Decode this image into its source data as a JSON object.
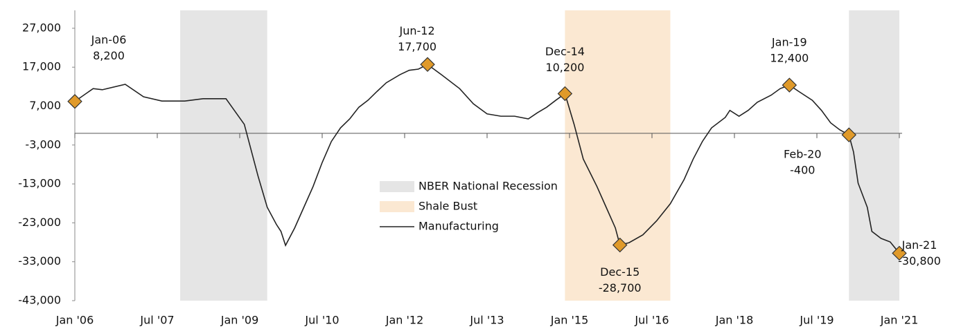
{
  "chart_data": {
    "type": "line",
    "x": [
      "2006-01",
      "2006-05",
      "2006-07",
      "2006-12",
      "2007-04",
      "2007-08",
      "2008-01",
      "2008-05",
      "2008-10",
      "2009-02",
      "2009-05",
      "2009-07",
      "2009-09",
      "2009-10",
      "2009-11",
      "2010-01",
      "2010-03",
      "2010-05",
      "2010-07",
      "2010-09",
      "2010-11",
      "2011-01",
      "2011-03",
      "2011-05",
      "2011-07",
      "2011-09",
      "2011-12",
      "2012-02",
      "2012-04",
      "2012-06",
      "2012-09",
      "2013-01",
      "2013-04",
      "2013-07",
      "2013-10",
      "2014-01",
      "2014-04",
      "2014-06",
      "2014-08",
      "2014-10",
      "2014-12",
      "2015-02",
      "2015-04",
      "2015-07",
      "2015-09",
      "2015-11",
      "2015-12",
      "2016-02",
      "2016-05",
      "2016-08",
      "2016-11",
      "2017-02",
      "2017-04",
      "2017-06",
      "2017-08",
      "2017-11",
      "2017-12",
      "2018-02",
      "2018-04",
      "2018-06",
      "2018-09",
      "2018-11",
      "2019-01",
      "2019-03",
      "2019-06",
      "2019-08",
      "2019-10",
      "2019-12",
      "2020-02",
      "2020-03",
      "2020-04",
      "2020-06",
      "2020-07",
      "2020-09",
      "2020-11",
      "2021-01"
    ],
    "series": [
      {
        "name": "Manufacturing",
        "color": "#222222",
        "values": [
          8200,
          11500,
          11200,
          12600,
          9400,
          8300,
          8300,
          8900,
          8900,
          2300,
          -11000,
          -19000,
          -23400,
          -25200,
          -28800,
          -24300,
          -19000,
          -13700,
          -7500,
          -2100,
          1400,
          3700,
          6700,
          8500,
          10800,
          13000,
          15100,
          16200,
          16500,
          17700,
          15100,
          11500,
          7600,
          5000,
          4400,
          4400,
          3700,
          5300,
          6700,
          8500,
          10200,
          2300,
          -6600,
          -13700,
          -19000,
          -24300,
          -28700,
          -28100,
          -26100,
          -22500,
          -18100,
          -11900,
          -6600,
          -2100,
          1400,
          4100,
          5900,
          4400,
          5900,
          8000,
          9800,
          11500,
          12400,
          10800,
          8500,
          5900,
          2700,
          900,
          -400,
          -4800,
          -12800,
          -19000,
          -25200,
          -27000,
          -27900,
          -30800
        ]
      }
    ],
    "shaded_regions": [
      {
        "name": "NBER National Recession",
        "color": "#e5e5e5",
        "ranges": [
          [
            "2007-12",
            "2009-07"
          ],
          [
            "2020-02",
            "2021-01"
          ]
        ]
      },
      {
        "name": "Shale Bust",
        "color": "#fbe8d2",
        "ranges": [
          [
            "2014-12",
            "2016-11"
          ]
        ]
      }
    ],
    "annotations": [
      {
        "x": "2006-01",
        "label": "Jan-06",
        "value": 8200,
        "value_label": "8,200"
      },
      {
        "x": "2012-06",
        "label": "Jun-12",
        "value": 17700,
        "value_label": "17,700"
      },
      {
        "x": "2014-12",
        "label": "Dec-14",
        "value": 10200,
        "value_label": "10,200"
      },
      {
        "x": "2015-12",
        "label": "Dec-15",
        "value": -28700,
        "value_label": "-28,700"
      },
      {
        "x": "2019-01",
        "label": "Jan-19",
        "value": 12400,
        "value_label": "12,400"
      },
      {
        "x": "2020-02",
        "label": "Feb-20",
        "value": -400,
        "value_label": "-400"
      },
      {
        "x": "2021-01",
        "label": "Jan-21",
        "value": -30800,
        "value_label": "-30,800"
      }
    ],
    "marker_color": "#e09a2a",
    "xlim": [
      "2006-01",
      "2021-01"
    ],
    "xticks": [
      {
        "value": "2006-01",
        "label": "Jan '06"
      },
      {
        "value": "2007-07",
        "label": "Jul '07"
      },
      {
        "value": "2009-01",
        "label": "Jan '09"
      },
      {
        "value": "2010-07",
        "label": "Jul '10"
      },
      {
        "value": "2012-01",
        "label": "Jan '12"
      },
      {
        "value": "2013-07",
        "label": "Jul '13"
      },
      {
        "value": "2015-01",
        "label": "Jan '15"
      },
      {
        "value": "2016-07",
        "label": "Jul '16"
      },
      {
        "value": "2018-01",
        "label": "Jan '18"
      },
      {
        "value": "2019-07",
        "label": "Jul '19"
      },
      {
        "value": "2021-01",
        "label": "Jan '21"
      }
    ],
    "ylim": [
      -43000,
      31600
    ],
    "yticks": [
      {
        "value": -43000,
        "label": "-43,000"
      },
      {
        "value": -33000,
        "label": "-33,000"
      },
      {
        "value": -23000,
        "label": "-23,000"
      },
      {
        "value": -13000,
        "label": "-13,000"
      },
      {
        "value": -3000,
        "label": "-3,000"
      },
      {
        "value": 7000,
        "label": "7,000"
      },
      {
        "value": 17000,
        "label": "17,000"
      },
      {
        "value": 27000,
        "label": "27,000"
      }
    ],
    "grid": false
  }
}
